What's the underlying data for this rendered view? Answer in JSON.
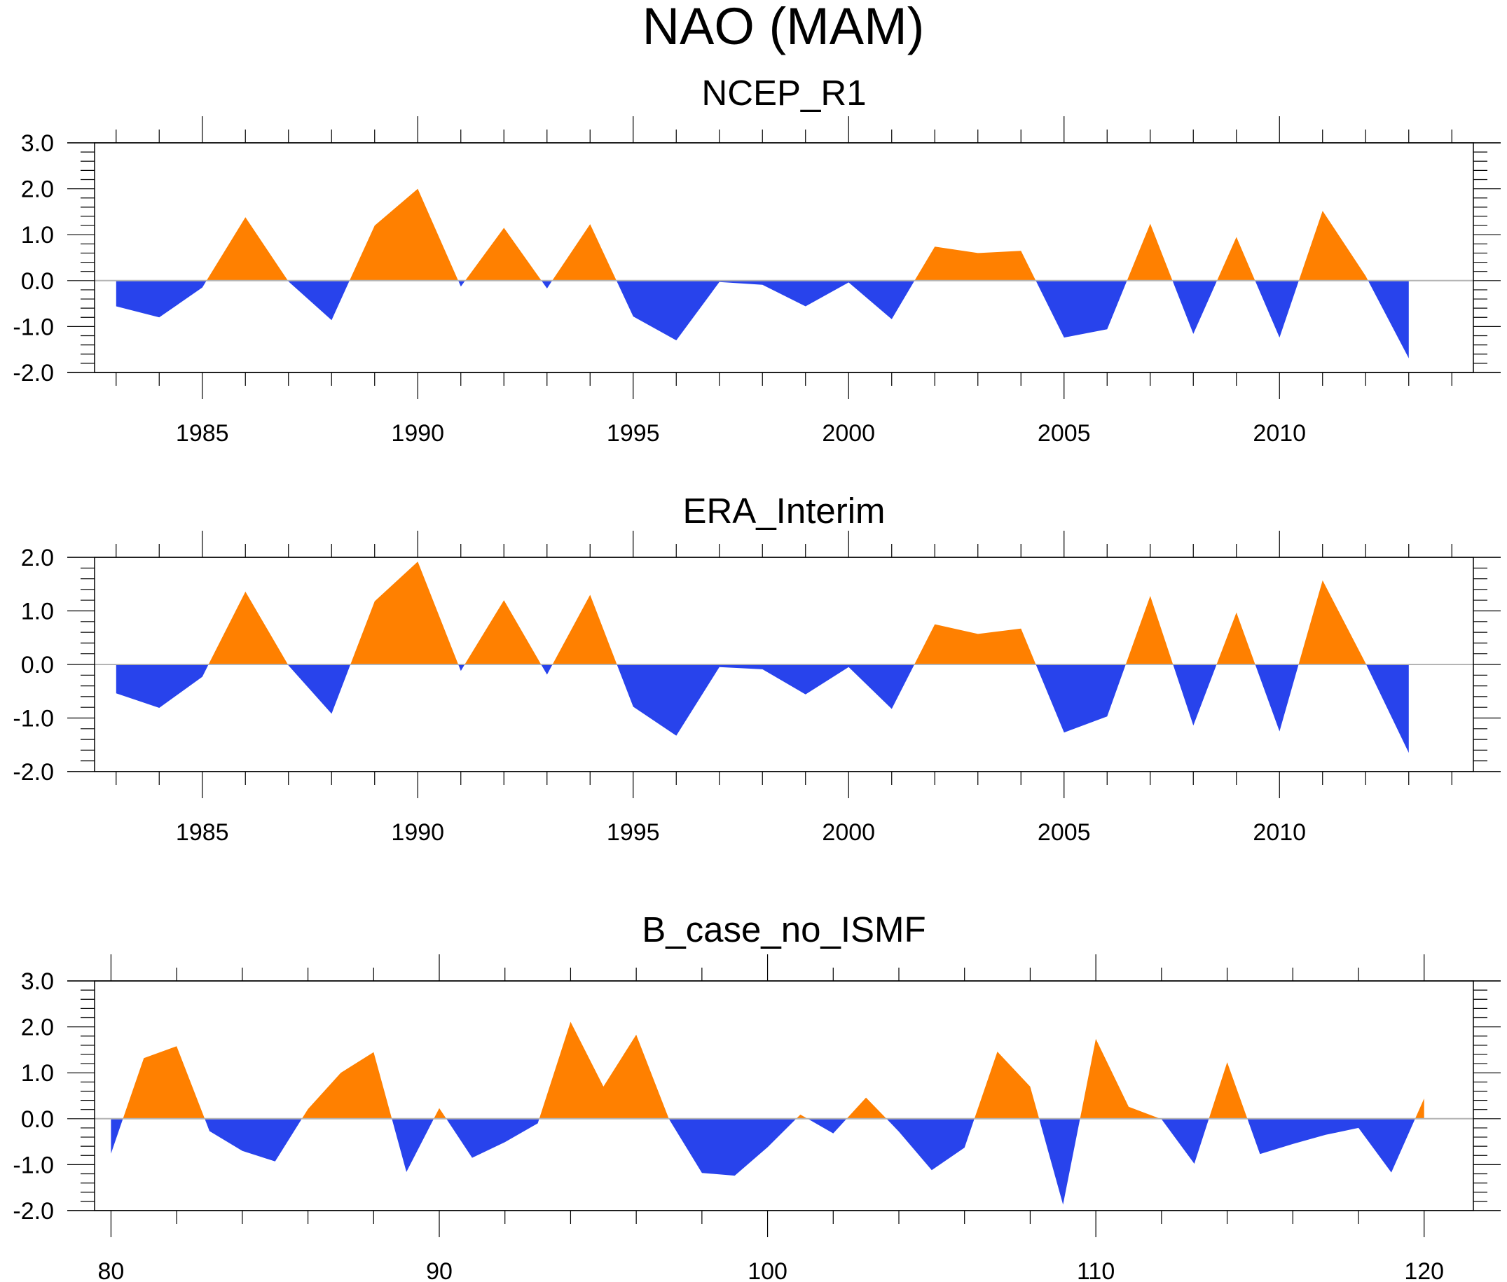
{
  "figure": {
    "title": "NAO (MAM)",
    "colors": {
      "positive": "#ff8000",
      "negative": "#2843ec",
      "zero_line": "#b4b4b4",
      "axis": "#000000"
    }
  },
  "chart_data": [
    {
      "type": "area",
      "title": "NCEP_R1",
      "xlabel": "",
      "ylabel": "",
      "xlim": [
        1982.5,
        2014.5
      ],
      "ylim": [
        -2.0,
        3.0
      ],
      "x_major_ticks": [
        1985,
        1990,
        1995,
        2000,
        2005,
        2010
      ],
      "x_tick_labels": [
        "1985",
        "1990",
        "1995",
        "2000",
        "2005",
        "2010"
      ],
      "x_minor_step": 1,
      "y_major_ticks": [
        3.0,
        2.0,
        1.0,
        0.0,
        -1.0,
        -2.0
      ],
      "y_tick_labels": [
        "3.0",
        "2.0",
        "1.0",
        "0.0",
        "-1.0",
        "-2.0"
      ],
      "y_minor_step": 0.2,
      "fill_above_zero": "positive",
      "fill_below_zero": "negative",
      "x": [
        1983,
        1984,
        1985,
        1986,
        1987,
        1988,
        1989,
        1990,
        1991,
        1992,
        1993,
        1994,
        1995,
        1996,
        1997,
        1998,
        1999,
        2000,
        2001,
        2002,
        2003,
        2004,
        2005,
        2006,
        2007,
        2008,
        2009,
        2010,
        2011,
        2012,
        2013
      ],
      "values": [
        -0.56,
        -0.8,
        -0.15,
        1.38,
        -0.02,
        -0.86,
        1.2,
        2.0,
        -0.13,
        1.15,
        -0.17,
        1.23,
        -0.78,
        -1.3,
        -0.03,
        -0.09,
        -0.56,
        -0.04,
        -0.84,
        0.74,
        0.6,
        0.65,
        -1.24,
        -1.06,
        1.24,
        -1.16,
        0.95,
        -1.24,
        1.52,
        0.1,
        -1.69
      ]
    },
    {
      "type": "area",
      "title": "ERA_Interim",
      "xlabel": "",
      "ylabel": "",
      "xlim": [
        1982.5,
        2014.5
      ],
      "ylim": [
        -2.0,
        2.0
      ],
      "x_major_ticks": [
        1985,
        1990,
        1995,
        2000,
        2005,
        2010
      ],
      "x_tick_labels": [
        "1985",
        "1990",
        "1995",
        "2000",
        "2005",
        "2010"
      ],
      "x_minor_step": 1,
      "y_major_ticks": [
        2.0,
        1.0,
        0.0,
        -1.0,
        -2.0
      ],
      "y_tick_labels": [
        "2.0",
        "1.0",
        "0.0",
        "-1.0",
        "-2.0"
      ],
      "y_minor_step": 0.2,
      "fill_above_zero": "positive",
      "fill_below_zero": "negative",
      "x": [
        1983,
        1984,
        1985,
        1986,
        1987,
        1988,
        1989,
        1990,
        1991,
        1992,
        1993,
        1994,
        1995,
        1996,
        1997,
        1998,
        1999,
        2000,
        2001,
        2002,
        2003,
        2004,
        2005,
        2006,
        2007,
        2008,
        2009,
        2010,
        2011,
        2012,
        2013
      ],
      "values": [
        -0.54,
        -0.81,
        -0.23,
        1.36,
        -0.02,
        -0.92,
        1.18,
        1.92,
        -0.12,
        1.2,
        -0.19,
        1.3,
        -0.79,
        -1.33,
        -0.05,
        -0.09,
        -0.56,
        -0.05,
        -0.83,
        0.75,
        0.57,
        0.67,
        -1.27,
        -0.97,
        1.28,
        -1.14,
        0.97,
        -1.25,
        1.57,
        0.02,
        -1.65
      ]
    },
    {
      "type": "area",
      "title": "B_case_no_ISMF",
      "xlabel": "",
      "ylabel": "",
      "xlim": [
        79.5,
        121.5
      ],
      "ylim": [
        -2.0,
        3.0
      ],
      "x_major_ticks": [
        80,
        90,
        100,
        110,
        120
      ],
      "x_tick_labels": [
        "80",
        "90",
        "100",
        "110",
        "120"
      ],
      "x_minor_step": 2,
      "y_major_ticks": [
        3.0,
        2.0,
        1.0,
        0.0,
        -1.0,
        -2.0
      ],
      "y_tick_labels": [
        "3.0",
        "2.0",
        "1.0",
        "0.0",
        "-1.0",
        "-2.0"
      ],
      "y_minor_step": 0.2,
      "fill_above_zero": "positive",
      "fill_below_zero": "negative",
      "x": [
        80,
        81,
        82,
        83,
        84,
        85,
        86,
        87,
        88,
        89,
        90,
        91,
        92,
        93,
        94,
        95,
        96,
        97,
        98,
        99,
        100,
        101,
        102,
        103,
        104,
        105,
        106,
        107,
        108,
        109,
        110,
        111,
        112,
        113,
        114,
        115,
        116,
        117,
        118,
        119,
        120
      ],
      "values": [
        -0.76,
        1.32,
        1.58,
        -0.27,
        -0.7,
        -0.93,
        0.21,
        1.0,
        1.45,
        -1.16,
        0.23,
        -0.85,
        -0.51,
        -0.1,
        2.11,
        0.7,
        1.83,
        -0.01,
        -1.18,
        -1.24,
        -0.62,
        0.09,
        -0.32,
        0.46,
        -0.28,
        -1.12,
        -0.63,
        1.46,
        0.7,
        -1.87,
        1.74,
        0.26,
        -0.01,
        -0.98,
        1.23,
        -0.77,
        -0.55,
        -0.35,
        -0.2,
        -1.17,
        0.44
      ]
    }
  ]
}
